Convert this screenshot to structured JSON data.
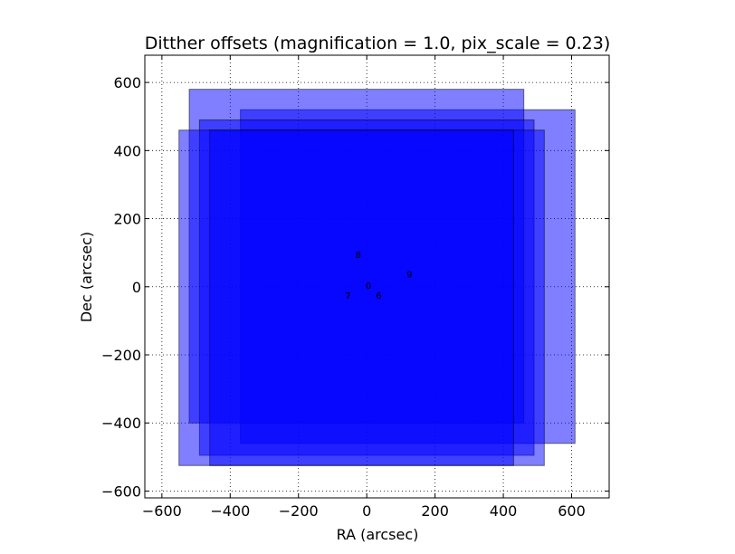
{
  "chart_data": {
    "type": "scatter",
    "title": "Ditther offsets (magnification = 1.0, pix_scale = 0.23)",
    "xlabel": "RA (arcsec)",
    "ylabel": "Dec (arcsec)",
    "xlim": [
      -650,
      710
    ],
    "ylim": [
      -620,
      680
    ],
    "xticks": [
      -600,
      -400,
      -200,
      0,
      200,
      400,
      600
    ],
    "yticks": [
      -600,
      -400,
      -200,
      0,
      200,
      400,
      600
    ],
    "xtick_labels": [
      "−600",
      "−400",
      "−200",
      "0",
      "200",
      "400",
      "600"
    ],
    "ytick_labels": [
      "−600",
      "−400",
      "−200",
      "0",
      "200",
      "400",
      "600"
    ],
    "grid": true,
    "fill_color": "#0000ff",
    "fill_alpha": 0.5,
    "footprints": [
      {
        "label": "9",
        "x0": -370,
        "x1": 610,
        "y0": -460,
        "y1": 520
      },
      {
        "label": "8",
        "x0": -520,
        "x1": 460,
        "y0": -400,
        "y1": 580
      },
      {
        "label": "0",
        "x0": -490,
        "x1": 490,
        "y0": -495,
        "y1": 490
      },
      {
        "label": "6",
        "x0": -460,
        "x1": 520,
        "y0": -525,
        "y1": 460
      },
      {
        "label": "7",
        "x0": -550,
        "x1": 430,
        "y0": -525,
        "y1": 460
      }
    ],
    "points": [
      {
        "label": "8",
        "x": -25,
        "y": 95
      },
      {
        "label": "9",
        "x": 125,
        "y": 38
      },
      {
        "label": "0",
        "x": 5,
        "y": 5
      },
      {
        "label": "7",
        "x": -55,
        "y": -25
      },
      {
        "label": "6",
        "x": 35,
        "y": -25
      }
    ]
  }
}
